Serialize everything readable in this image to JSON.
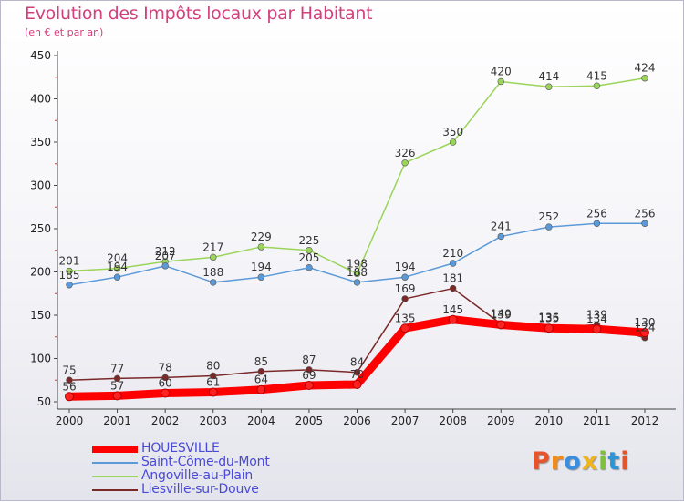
{
  "title": "Evolution des Impôts locaux par Habitant",
  "subtitle": "(en € et par an)",
  "logo": {
    "letters": [
      "P",
      "r",
      "o",
      "x",
      "i",
      "t",
      "i"
    ],
    "colors": [
      "#e8542a",
      "#f08c1e",
      "#3a8ee0",
      "#f0b41e",
      "#7cc03c",
      "#2a96d8",
      "#e8542a"
    ]
  },
  "chart_data": {
    "type": "line",
    "title": "Evolution des Impôts locaux par Habitant",
    "subtitle": "(en € et par an)",
    "x": [
      "2000",
      "2001",
      "2002",
      "2003",
      "2004",
      "2005",
      "2006",
      "2007",
      "2008",
      "2009",
      "2010",
      "2011",
      "2012"
    ],
    "ylim": [
      50,
      450
    ],
    "yticks": [
      "50",
      "100",
      "150",
      "200",
      "250",
      "300",
      "350",
      "400",
      "450"
    ],
    "grid": false,
    "legend": "bottom-left",
    "series": [
      {
        "name": "HOUESVILLE",
        "color": "#ff0000",
        "values": [
          56,
          57,
          60,
          61,
          64,
          69,
          70,
          135,
          145,
          139,
          135,
          134,
          130
        ],
        "labels": [
          "56",
          "57",
          "60",
          "61",
          "64",
          "69",
          "70",
          "135",
          "145",
          "139",
          "135",
          "134",
          "130"
        ]
      },
      {
        "name": "Saint-Côme-du-Mont",
        "color": "#5b9ad8",
        "values": [
          185,
          194,
          207,
          188,
          194,
          205,
          188,
          194,
          210,
          241,
          252,
          256,
          256
        ],
        "labels": [
          "185",
          "194",
          "207",
          "188",
          "194",
          "205",
          "188",
          "194",
          "210",
          "241",
          "252",
          "256",
          "256"
        ]
      },
      {
        "name": "Angoville-au-Plain",
        "color": "#9ad45a",
        "values": [
          201,
          204,
          212,
          217,
          229,
          225,
          198,
          326,
          350,
          420,
          414,
          415,
          424
        ],
        "labels": [
          "201",
          "204",
          "212",
          "217",
          "229",
          "225",
          "198",
          "326",
          "350",
          "420",
          "414",
          "415",
          "424"
        ]
      },
      {
        "name": "Liesville-sur-Douve",
        "color": "#7a2828",
        "values": [
          75,
          77,
          78,
          80,
          85,
          87,
          84,
          169,
          181,
          140,
          136,
          139,
          124
        ],
        "labels": [
          "75",
          "77",
          "78",
          "80",
          "85",
          "87",
          "84",
          "169",
          "181",
          "140",
          "136",
          "139",
          "124"
        ]
      }
    ]
  }
}
